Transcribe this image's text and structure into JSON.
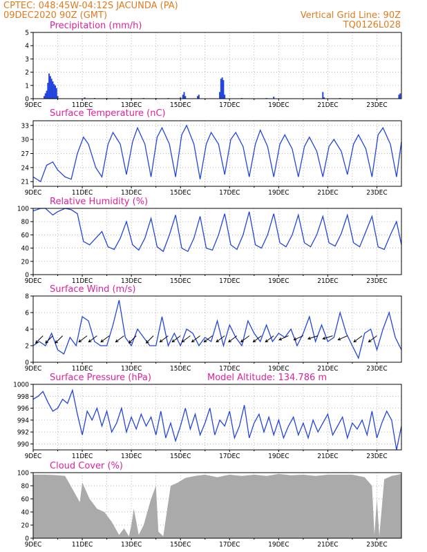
{
  "header": {
    "line1_left": "CPTEC:   048:45W-04:12S   JACUNDA (PA)",
    "line2_left": "09DEC2020 90Z (GMT)",
    "line1_right": "Vertical Grid Line: 90Z",
    "line2_right": "TQ0126L028"
  },
  "model_altitude": "Model Altitude: 134.786 m",
  "colors": {
    "header": "#e07a1f",
    "title": "#e0209a",
    "line": "#2244dd",
    "cloud": "#aaaaaa",
    "arrow": "#000000"
  },
  "x_axis": {
    "start_day": 9,
    "end_day": 24,
    "tick_labels": [
      "9DEC",
      "11DEC",
      "13DEC",
      "15DEC",
      "17DEC",
      "19DEC",
      "21DEC",
      "23DEC"
    ],
    "tick_days": [
      9,
      11,
      13,
      15,
      17,
      19,
      21,
      23
    ]
  },
  "chart_data": [
    {
      "type": "bar",
      "title": "Precipitation (mm/h)",
      "ylim": [
        0,
        5
      ],
      "yticks": [
        "0",
        "1",
        "2",
        "3",
        "4",
        "5"
      ],
      "x": [
        9.45,
        9.5,
        9.55,
        9.6,
        9.65,
        9.7,
        9.75,
        9.8,
        9.85,
        9.9,
        9.95,
        10.0,
        11.1,
        11.5,
        12.0,
        12.5,
        13.0,
        13.5,
        14.0,
        14.5,
        15.0,
        15.1,
        15.15,
        15.2,
        15.7,
        15.75,
        16.6,
        16.65,
        16.7,
        16.75,
        16.8,
        17.5,
        18.5,
        18.8,
        20.8,
        20.85,
        21.5,
        23.9,
        23.95
      ],
      "values": [
        0.2,
        0.4,
        0.6,
        1.2,
        1.9,
        1.7,
        1.5,
        1.3,
        1.1,
        1.0,
        0.8,
        0.2,
        0.1,
        0.05,
        0.05,
        0.05,
        0.05,
        0.05,
        0.05,
        0.05,
        0.1,
        0.3,
        0.5,
        0.2,
        0.2,
        0.3,
        0.5,
        1.5,
        1.6,
        1.4,
        0.3,
        0.05,
        0.05,
        0.15,
        0.5,
        0.1,
        0.05,
        0.3,
        0.4
      ]
    },
    {
      "type": "line",
      "title": "Surface Temperature (nC)",
      "ylim": [
        20,
        34
      ],
      "yticks": [
        "21",
        "24",
        "27",
        "30",
        "33"
      ],
      "ytick_values": [
        21,
        24,
        27,
        30,
        33
      ],
      "x": [
        9.0,
        9.3,
        9.55,
        9.8,
        10.0,
        10.3,
        10.55,
        10.8,
        11.05,
        11.25,
        11.55,
        11.8,
        12.05,
        12.25,
        12.55,
        12.8,
        13.05,
        13.25,
        13.55,
        13.8,
        14.05,
        14.25,
        14.55,
        14.8,
        15.05,
        15.25,
        15.55,
        15.8,
        16.05,
        16.25,
        16.55,
        16.8,
        17.05,
        17.25,
        17.55,
        17.8,
        18.05,
        18.25,
        18.55,
        18.8,
        19.05,
        19.25,
        19.55,
        19.8,
        20.05,
        20.25,
        20.55,
        20.8,
        21.05,
        21.25,
        21.55,
        21.8,
        22.05,
        22.25,
        22.55,
        22.8,
        23.05,
        23.25,
        23.55,
        23.8,
        24.0
      ],
      "values": [
        22.0,
        21.0,
        24.5,
        25.2,
        23.5,
        22.0,
        21.5,
        27.0,
        30.5,
        29.0,
        24.0,
        22.0,
        29.0,
        31.5,
        29.0,
        22.5,
        29.5,
        32.5,
        29.0,
        22.0,
        30.5,
        32.5,
        29.0,
        22.0,
        31.0,
        33.0,
        29.0,
        21.5,
        29.0,
        31.5,
        29.0,
        22.5,
        30.0,
        31.5,
        28.5,
        22.0,
        29.0,
        32.0,
        28.5,
        22.0,
        29.0,
        31.0,
        28.0,
        22.0,
        28.5,
        30.5,
        27.5,
        22.0,
        28.5,
        30.0,
        27.5,
        22.5,
        29.0,
        31.0,
        28.0,
        22.0,
        31.0,
        32.5,
        29.0,
        22.0,
        29.5
      ]
    },
    {
      "type": "line",
      "title": "Relative Humidity (%)",
      "ylim": [
        0,
        100
      ],
      "yticks": [
        "0",
        "20",
        "40",
        "60",
        "80",
        "100"
      ],
      "ytick_values": [
        0,
        20,
        40,
        60,
        80,
        100
      ],
      "x": [
        9.0,
        9.3,
        9.5,
        9.8,
        10.0,
        10.3,
        10.55,
        10.8,
        11.05,
        11.3,
        11.55,
        11.8,
        12.05,
        12.3,
        12.55,
        12.8,
        13.05,
        13.3,
        13.55,
        13.8,
        14.05,
        14.3,
        14.55,
        14.8,
        15.05,
        15.3,
        15.55,
        15.8,
        16.05,
        16.3,
        16.55,
        16.8,
        17.05,
        17.3,
        17.55,
        17.8,
        18.05,
        18.3,
        18.55,
        18.8,
        19.05,
        19.3,
        19.55,
        19.8,
        20.05,
        20.3,
        20.55,
        20.8,
        21.05,
        21.3,
        21.55,
        21.8,
        22.05,
        22.3,
        22.55,
        22.8,
        23.05,
        23.3,
        23.55,
        23.8,
        24.0
      ],
      "values": [
        96,
        100,
        100,
        90,
        95,
        100,
        98,
        92,
        50,
        45,
        55,
        65,
        42,
        38,
        55,
        80,
        45,
        37,
        55,
        85,
        42,
        35,
        60,
        90,
        40,
        35,
        55,
        88,
        40,
        37,
        60,
        92,
        45,
        38,
        60,
        95,
        45,
        40,
        60,
        92,
        48,
        42,
        60,
        90,
        48,
        42,
        60,
        88,
        48,
        43,
        62,
        90,
        48,
        42,
        65,
        88,
        42,
        38,
        60,
        80,
        45
      ]
    },
    {
      "type": "line",
      "title": "Surface Wind (m/s)",
      "ylim": [
        0,
        8
      ],
      "yticks": [
        "0",
        "2",
        "4",
        "6",
        "8"
      ],
      "ytick_values": [
        0,
        2,
        4,
        6,
        8
      ],
      "x": [
        9.0,
        9.25,
        9.5,
        9.75,
        10.0,
        10.25,
        10.5,
        10.75,
        11.0,
        11.25,
        11.5,
        11.75,
        12.0,
        12.25,
        12.5,
        12.75,
        13.0,
        13.25,
        13.5,
        13.75,
        14.0,
        14.25,
        14.5,
        14.75,
        15.0,
        15.25,
        15.5,
        15.75,
        16.0,
        16.25,
        16.5,
        16.75,
        17.0,
        17.25,
        17.5,
        17.75,
        18.0,
        18.25,
        18.5,
        18.75,
        19.0,
        19.25,
        19.5,
        19.75,
        20.0,
        20.25,
        20.5,
        20.75,
        21.0,
        21.25,
        21.5,
        21.75,
        22.0,
        22.25,
        22.5,
        22.75,
        23.0,
        23.25,
        23.5,
        23.75,
        24.0
      ],
      "values": [
        2.0,
        2.5,
        2.0,
        3.5,
        1.5,
        1.0,
        3.0,
        2.0,
        5.5,
        5.0,
        2.5,
        2.0,
        2.0,
        4.5,
        7.5,
        3.0,
        2.0,
        4.0,
        3.0,
        2.0,
        2.0,
        5.5,
        2.0,
        3.5,
        2.0,
        4.0,
        3.5,
        2.0,
        3.0,
        2.5,
        5.0,
        2.0,
        4.5,
        3.0,
        2.0,
        5.0,
        3.5,
        2.5,
        4.5,
        2.5,
        3.5,
        3.0,
        4.0,
        2.0,
        3.5,
        5.5,
        2.5,
        4.5,
        2.5,
        3.0,
        6.0,
        3.5,
        2.0,
        0.5,
        3.5,
        4.0,
        1.5,
        4.0,
        6.0,
        3.0,
        1.5
      ],
      "arrows": [
        {
          "x": 9.4,
          "u": -0.7,
          "v": -0.7
        },
        {
          "x": 9.8,
          "u": -0.7,
          "v": -0.7
        },
        {
          "x": 10.2,
          "u": -0.7,
          "v": -0.7
        },
        {
          "x": 11.2,
          "u": -0.8,
          "v": -0.6
        },
        {
          "x": 11.6,
          "u": -0.8,
          "v": -0.6
        },
        {
          "x": 12.1,
          "u": -0.8,
          "v": -0.6
        },
        {
          "x": 12.7,
          "u": -0.8,
          "v": -0.6
        },
        {
          "x": 13.2,
          "u": -0.7,
          "v": -0.7
        },
        {
          "x": 13.9,
          "u": -0.7,
          "v": -0.7
        },
        {
          "x": 14.5,
          "u": -0.8,
          "v": -0.6
        },
        {
          "x": 15.0,
          "u": -0.8,
          "v": -0.6
        },
        {
          "x": 15.4,
          "u": -0.8,
          "v": -0.6
        },
        {
          "x": 15.8,
          "u": -0.8,
          "v": -0.6
        },
        {
          "x": 16.3,
          "u": -0.8,
          "v": -0.6
        },
        {
          "x": 16.8,
          "u": -0.8,
          "v": -0.6
        },
        {
          "x": 17.3,
          "u": -0.8,
          "v": -0.6
        },
        {
          "x": 17.8,
          "u": -0.8,
          "v": -0.6
        },
        {
          "x": 18.3,
          "u": -0.8,
          "v": -0.6
        },
        {
          "x": 18.8,
          "u": -0.8,
          "v": -0.6
        },
        {
          "x": 19.4,
          "u": -0.9,
          "v": -0.4
        },
        {
          "x": 20.0,
          "u": -0.9,
          "v": -0.4
        },
        {
          "x": 20.6,
          "u": -0.95,
          "v": -0.3
        },
        {
          "x": 21.2,
          "u": -0.95,
          "v": -0.3
        },
        {
          "x": 21.8,
          "u": -0.9,
          "v": -0.4
        },
        {
          "x": 22.4,
          "u": -0.8,
          "v": -0.6
        },
        {
          "x": 23.0,
          "u": -0.8,
          "v": -0.6
        }
      ]
    },
    {
      "type": "line",
      "title": "Surface Pressure (hPa)",
      "ylim": [
        989,
        1000
      ],
      "yticks": [
        "990",
        "992",
        "994",
        "996",
        "998",
        "1000"
      ],
      "ytick_values": [
        990,
        992,
        994,
        996,
        998,
        1000
      ],
      "x": [
        9.0,
        9.2,
        9.4,
        9.6,
        9.8,
        10.0,
        10.2,
        10.4,
        10.6,
        10.8,
        11.0,
        11.2,
        11.4,
        11.6,
        11.8,
        12.0,
        12.2,
        12.4,
        12.6,
        12.8,
        13.0,
        13.2,
        13.4,
        13.6,
        13.8,
        14.0,
        14.2,
        14.4,
        14.6,
        14.8,
        15.0,
        15.2,
        15.4,
        15.6,
        15.8,
        16.0,
        16.2,
        16.4,
        16.6,
        16.8,
        17.0,
        17.2,
        17.4,
        17.6,
        17.8,
        18.0,
        18.2,
        18.4,
        18.6,
        18.8,
        19.0,
        19.2,
        19.4,
        19.6,
        19.8,
        20.0,
        20.2,
        20.4,
        20.6,
        20.8,
        21.0,
        21.2,
        21.4,
        21.6,
        21.8,
        22.0,
        22.2,
        22.4,
        22.6,
        22.8,
        23.0,
        23.2,
        23.4,
        23.6,
        23.8,
        24.0
      ],
      "values": [
        997.5,
        998.0,
        998.8,
        997.0,
        995.5,
        996.0,
        997.5,
        996.8,
        999.0,
        995.0,
        991.5,
        995.5,
        994.0,
        996.0,
        993.0,
        995.5,
        992.0,
        993.5,
        996.0,
        992.0,
        994.5,
        992.5,
        995.0,
        993.0,
        994.5,
        991.5,
        995.5,
        991.0,
        993.5,
        990.5,
        993.0,
        996.0,
        992.5,
        995.0,
        991.5,
        993.5,
        996.0,
        991.5,
        994.0,
        993.0,
        995.5,
        991.0,
        993.0,
        996.5,
        991.0,
        993.5,
        995.0,
        992.0,
        994.5,
        991.5,
        994.0,
        991.0,
        993.0,
        994.5,
        991.5,
        993.5,
        991.0,
        994.0,
        992.0,
        993.5,
        995.0,
        991.5,
        993.0,
        994.5,
        991.0,
        993.5,
        992.5,
        994.0,
        991.5,
        995.5,
        991.0,
        993.5,
        995.5,
        994.0,
        989.0,
        993.0
      ]
    },
    {
      "type": "area",
      "title": "Cloud Cover (%)",
      "ylim": [
        0,
        100
      ],
      "yticks": [
        "0",
        "20",
        "40",
        "60",
        "80",
        "100"
      ],
      "ytick_values": [
        0,
        20,
        40,
        60,
        80,
        100
      ],
      "x": [
        9.0,
        9.5,
        10.0,
        10.3,
        10.6,
        10.9,
        11.0,
        11.3,
        11.6,
        11.9,
        12.2,
        12.5,
        12.7,
        12.9,
        13.0,
        13.1,
        13.3,
        13.5,
        13.8,
        14.0,
        14.1,
        14.3,
        14.6,
        14.9,
        15.2,
        15.6,
        16.0,
        16.5,
        17.0,
        17.5,
        18.0,
        18.5,
        19.0,
        19.5,
        20.0,
        20.5,
        21.0,
        21.5,
        22.0,
        22.5,
        22.8,
        22.9,
        23.0,
        23.1,
        23.3,
        23.6,
        24.0
      ],
      "values": [
        97,
        97,
        96,
        95,
        75,
        55,
        85,
        60,
        45,
        40,
        25,
        5,
        15,
        3,
        20,
        45,
        5,
        20,
        60,
        80,
        10,
        3,
        80,
        85,
        92,
        95,
        97,
        93,
        97,
        95,
        97,
        95,
        98,
        96,
        97,
        95,
        97,
        97,
        97,
        93,
        80,
        5,
        60,
        3,
        90,
        95,
        98
      ]
    }
  ],
  "panels": [
    {
      "title_label": "Precipitation (mm/h)"
    },
    {
      "title_label": "Surface Temperature (nC)"
    },
    {
      "title_label": "Relative Humidity (%)"
    },
    {
      "title_label": "Surface Wind (m/s)"
    },
    {
      "title_label": "Surface Pressure (hPa)"
    },
    {
      "title_label": "Cloud Cover (%)"
    }
  ]
}
